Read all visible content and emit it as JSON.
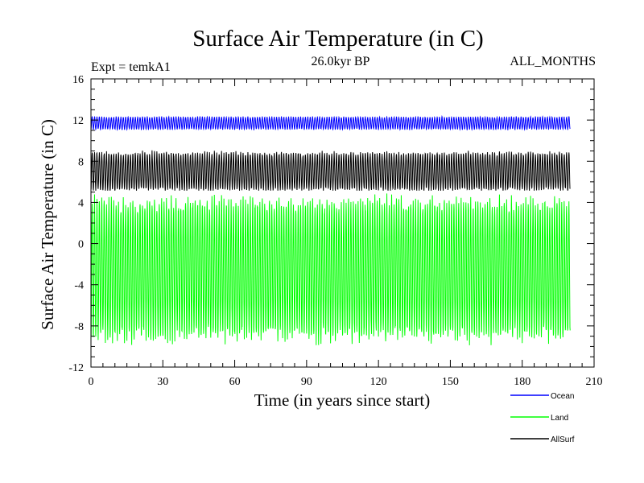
{
  "chart_data": {
    "type": "line",
    "title": "Surface Air Temperature (in C)",
    "subtitle_left": "Expt = temkA1",
    "subtitle_center": "26.0kyr BP",
    "subtitle_right": "ALL_MONTHS",
    "xlabel": "Time (in years since start)",
    "ylabel": "Surface Air Temperature (in C)",
    "xlim": [
      0,
      210
    ],
    "ylim": [
      -12,
      16
    ],
    "xticks": [
      0,
      30,
      60,
      90,
      120,
      150,
      180,
      210
    ],
    "yticks": [
      -12,
      -8,
      -4,
      0,
      4,
      8,
      12,
      16
    ],
    "data_end_year": 200,
    "series": [
      {
        "name": "Ocean",
        "color": "#0000ff",
        "mean": 11.7,
        "low": 11.0,
        "high": 12.3
      },
      {
        "name": "Land",
        "color": "#00ff00",
        "mean": -2.5,
        "low": -9.5,
        "high": 4.6
      },
      {
        "name": "AllSurf",
        "color": "#000000",
        "mean": 7.0,
        "low": 5.3,
        "high": 9.2
      }
    ]
  }
}
